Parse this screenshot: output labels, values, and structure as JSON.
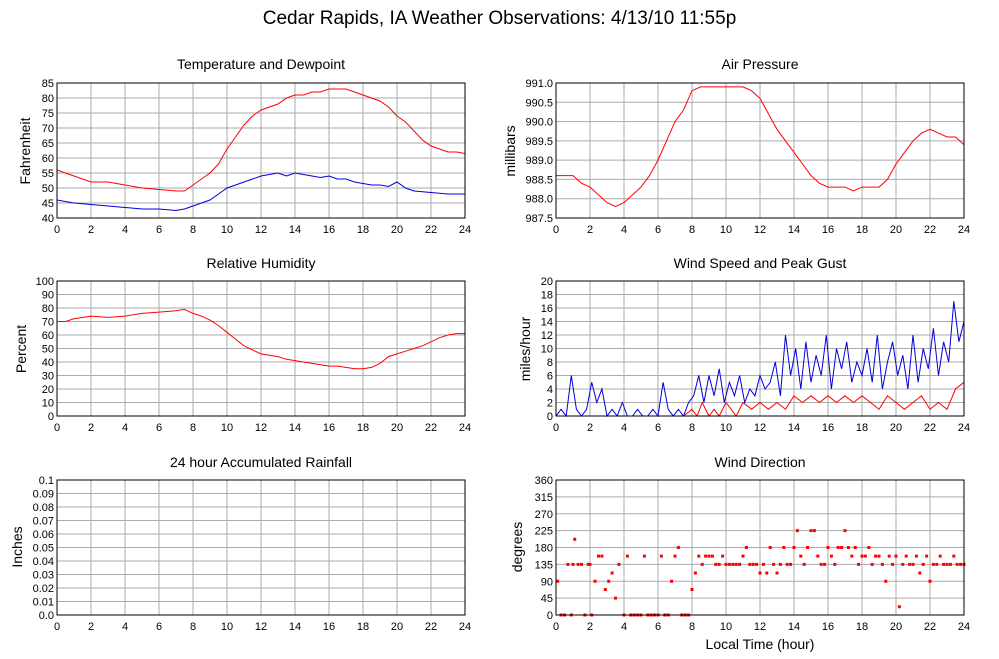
{
  "page": {
    "title": "Cedar Rapids, IA Weather Observations: 4/13/10 11:55p"
  },
  "colors": {
    "red": "#ff0000",
    "blue": "#0000dd",
    "grid": "#aaaaaa",
    "frame": "#000000"
  },
  "x_axis_title": "Local Time (hour)",
  "chart_data": [
    {
      "id": "temp",
      "type": "line",
      "title": "Temperature and Dewpoint",
      "xlabel": "",
      "ylabel": "Fahrenheit",
      "xlim": [
        0,
        24
      ],
      "ylim": [
        40,
        85
      ],
      "xticks": [
        0,
        2,
        4,
        6,
        8,
        10,
        12,
        14,
        16,
        18,
        20,
        22,
        24
      ],
      "yticks": [
        40,
        45,
        50,
        55,
        60,
        65,
        70,
        75,
        80,
        85
      ],
      "grid": true,
      "series": [
        {
          "color": "red",
          "x": [
            0,
            0.5,
            1,
            1.5,
            2,
            3,
            4,
            5,
            6,
            7,
            7.5,
            8,
            8.5,
            9,
            9.5,
            10,
            10.5,
            11,
            11.5,
            12,
            12.5,
            13,
            13.5,
            14,
            14.5,
            15,
            15.5,
            16,
            16.5,
            17,
            17.5,
            18,
            18.5,
            19,
            19.5,
            20,
            20.5,
            21,
            21.5,
            22,
            22.5,
            23,
            23.5,
            24
          ],
          "y": [
            56,
            55,
            54,
            53,
            52,
            52,
            51,
            50,
            49.5,
            49,
            49,
            51,
            53,
            55,
            58,
            63,
            67,
            71,
            74,
            76,
            77,
            78,
            80,
            81,
            81,
            82,
            82,
            83,
            83,
            83,
            82,
            81,
            80,
            79,
            77,
            74,
            72,
            69,
            66,
            64,
            63,
            62,
            62,
            61.5
          ]
        },
        {
          "color": "blue",
          "x": [
            0,
            1,
            2,
            3,
            4,
            5,
            6,
            7,
            7.5,
            8,
            8.5,
            9,
            9.5,
            10,
            10.5,
            11,
            11.5,
            12,
            12.5,
            13,
            13.5,
            14,
            14.5,
            15,
            15.5,
            16,
            16.5,
            17,
            17.5,
            18,
            18.5,
            19,
            19.5,
            20,
            20.5,
            21,
            22,
            23,
            24
          ],
          "y": [
            46,
            45,
            44.5,
            44,
            43.5,
            43,
            43,
            42.5,
            43,
            44,
            45,
            46,
            48,
            50,
            51,
            52,
            53,
            54,
            54.5,
            55,
            54,
            55,
            54.5,
            54,
            53.5,
            54,
            53,
            53,
            52,
            51.5,
            51,
            51,
            50.5,
            52,
            50,
            49,
            48.5,
            48,
            48
          ]
        }
      ]
    },
    {
      "id": "pressure",
      "type": "line",
      "title": "Air Pressure",
      "xlabel": "",
      "ylabel": "millibars",
      "xlim": [
        0,
        24
      ],
      "ylim": [
        987.5,
        991.0
      ],
      "xticks": [
        0,
        2,
        4,
        6,
        8,
        10,
        12,
        14,
        16,
        18,
        20,
        22,
        24
      ],
      "yticks": [
        987.5,
        988.0,
        988.5,
        989.0,
        989.5,
        990.0,
        990.5,
        991.0
      ],
      "grid": true,
      "series": [
        {
          "color": "red",
          "x": [
            0,
            1,
            1.5,
            2,
            2.5,
            3,
            3.5,
            4,
            4.5,
            5,
            5.5,
            6,
            6.5,
            7,
            7.5,
            8,
            8.5,
            9,
            9.5,
            10,
            10.5,
            11,
            11.5,
            12,
            12.5,
            13,
            13.5,
            14,
            14.5,
            15,
            15.5,
            16,
            16.5,
            17,
            17.5,
            18,
            18.5,
            19,
            19.5,
            20,
            20.5,
            21,
            21.5,
            22,
            22.5,
            23,
            23.5,
            24
          ],
          "y": [
            988.6,
            988.6,
            988.4,
            988.3,
            988.1,
            987.9,
            987.8,
            987.9,
            988.1,
            988.3,
            988.6,
            989.0,
            989.5,
            990.0,
            990.3,
            990.8,
            990.9,
            990.9,
            990.9,
            990.9,
            990.9,
            990.9,
            990.8,
            990.6,
            990.2,
            989.8,
            989.5,
            989.2,
            988.9,
            988.6,
            988.4,
            988.3,
            988.3,
            988.3,
            988.2,
            988.3,
            988.3,
            988.3,
            988.5,
            988.9,
            989.2,
            989.5,
            989.7,
            989.8,
            989.7,
            989.6,
            989.6,
            989.4
          ]
        }
      ]
    },
    {
      "id": "humidity",
      "type": "line",
      "title": "Relative Humidity",
      "xlabel": "",
      "ylabel": "Percent",
      "xlim": [
        0,
        24
      ],
      "ylim": [
        0,
        100
      ],
      "xticks": [
        0,
        2,
        4,
        6,
        8,
        10,
        12,
        14,
        16,
        18,
        20,
        22,
        24
      ],
      "yticks": [
        0,
        10,
        20,
        30,
        40,
        50,
        60,
        70,
        80,
        90,
        100
      ],
      "grid": true,
      "series": [
        {
          "color": "red",
          "x": [
            0,
            0.5,
            1,
            2,
            3,
            4,
            5,
            6,
            7,
            7.5,
            8,
            8.5,
            9,
            9.5,
            10,
            10.5,
            11,
            11.5,
            12,
            12.5,
            13,
            13.5,
            14,
            14.5,
            15,
            15.5,
            16,
            16.5,
            17,
            17.5,
            18,
            18.5,
            19,
            19.5,
            20,
            20.5,
            21,
            21.5,
            22,
            22.5,
            23,
            23.5,
            24
          ],
          "y": [
            70,
            70,
            72,
            74,
            73,
            74,
            76,
            77,
            78,
            79,
            76,
            74,
            71,
            67,
            62,
            57,
            52,
            49,
            46,
            45,
            44,
            42,
            41,
            40,
            39,
            38,
            37,
            37,
            36,
            35,
            35,
            36,
            39,
            44,
            46,
            48,
            50,
            52,
            55,
            58,
            60,
            61,
            61
          ]
        }
      ]
    },
    {
      "id": "wind",
      "type": "line",
      "title": "Wind Speed and Peak Gust",
      "xlabel": "",
      "ylabel": "miles/hour",
      "xlim": [
        0,
        24
      ],
      "ylim": [
        0,
        20
      ],
      "xticks": [
        0,
        2,
        4,
        6,
        8,
        10,
        12,
        14,
        16,
        18,
        20,
        22,
        24
      ],
      "yticks": [
        0,
        2,
        4,
        6,
        8,
        10,
        12,
        14,
        16,
        18,
        20
      ],
      "grid": true,
      "series": [
        {
          "color": "blue",
          "x": [
            0,
            0.3,
            0.6,
            0.9,
            1.2,
            1.5,
            1.8,
            2.1,
            2.4,
            2.7,
            3,
            3.3,
            3.6,
            3.9,
            4.2,
            4.5,
            4.8,
            5.1,
            5.4,
            5.7,
            6,
            6.3,
            6.6,
            6.9,
            7.2,
            7.5,
            7.8,
            8.1,
            8.4,
            8.7,
            9,
            9.3,
            9.6,
            9.9,
            10.2,
            10.5,
            10.8,
            11.1,
            11.4,
            11.7,
            12,
            12.3,
            12.6,
            12.9,
            13.2,
            13.5,
            13.8,
            14.1,
            14.4,
            14.7,
            15,
            15.3,
            15.6,
            15.9,
            16.2,
            16.5,
            16.8,
            17.1,
            17.4,
            17.7,
            18,
            18.3,
            18.6,
            18.9,
            19.2,
            19.5,
            19.8,
            20.1,
            20.4,
            20.7,
            21,
            21.3,
            21.6,
            21.9,
            22.2,
            22.5,
            22.8,
            23.1,
            23.4,
            23.7,
            24
          ],
          "y": [
            0,
            1,
            0,
            6,
            1,
            0,
            1,
            5,
            2,
            4,
            0,
            1,
            0,
            2,
            0,
            0,
            1,
            0,
            0,
            1,
            0,
            5,
            1,
            0,
            1,
            0,
            2,
            3,
            6,
            2,
            6,
            3,
            7,
            2,
            5,
            3,
            6,
            2,
            4,
            3,
            6,
            4,
            5,
            8,
            3,
            12,
            6,
            10,
            4,
            11,
            5,
            9,
            6,
            12,
            4,
            10,
            7,
            11,
            5,
            8,
            6,
            10,
            5,
            12,
            4,
            8,
            11,
            6,
            9,
            4,
            12,
            5,
            10,
            7,
            13,
            6,
            11,
            8,
            17,
            11,
            14
          ]
        },
        {
          "color": "red",
          "x": [
            0,
            1,
            2,
            3,
            4,
            5,
            6,
            7,
            7.5,
            8,
            8.3,
            8.6,
            9,
            9.3,
            9.6,
            10,
            10.3,
            10.6,
            11,
            11.5,
            12,
            12.5,
            13,
            13.5,
            14,
            14.5,
            15,
            15.5,
            16,
            16.5,
            17,
            17.5,
            18,
            18.5,
            19,
            19.5,
            20,
            20.5,
            21,
            21.5,
            22,
            22.5,
            23,
            23.5,
            24
          ],
          "y": [
            0,
            0,
            0,
            0,
            0,
            0,
            0,
            0,
            0,
            1,
            0,
            2,
            0,
            1,
            0,
            2,
            1,
            0,
            2,
            1,
            2,
            1,
            2,
            1,
            3,
            2,
            3,
            2,
            3,
            2,
            3,
            2,
            3,
            2,
            1,
            3,
            2,
            1,
            2,
            3,
            1,
            2,
            1,
            4,
            5
          ]
        }
      ]
    },
    {
      "id": "rain",
      "type": "line",
      "title": "24 hour Accumulated Rainfall",
      "xlabel": "",
      "ylabel": "Inches",
      "xlim": [
        0,
        24
      ],
      "ylim": [
        0,
        0.1
      ],
      "xticks": [
        0,
        2,
        4,
        6,
        8,
        10,
        12,
        14,
        16,
        18,
        20,
        22,
        24
      ],
      "yticks": [
        "0.0",
        "0.01",
        "0.02",
        "0.03",
        "0.04",
        "0.05",
        "0.06",
        "0.07",
        "0.08",
        "0.09",
        "0.1"
      ],
      "grid": true,
      "series": [
        {
          "color": "red",
          "x": [
            0,
            24
          ],
          "y": [
            0,
            0
          ]
        }
      ]
    },
    {
      "id": "direction",
      "type": "scatter",
      "title": "Wind Direction",
      "xlabel": "Local Time (hour)",
      "ylabel": "degrees",
      "xlim": [
        0,
        24
      ],
      "ylim": [
        0,
        360
      ],
      "xticks": [
        0,
        2,
        4,
        6,
        8,
        10,
        12,
        14,
        16,
        18,
        20,
        22,
        24
      ],
      "yticks": [
        0,
        45,
        90,
        135,
        180,
        225,
        270,
        315,
        360
      ],
      "grid": true,
      "series": [
        {
          "color": "red",
          "x": [
            0.1,
            0.3,
            0.5,
            0.7,
            0.9,
            1.0,
            1.1,
            1.3,
            1.5,
            1.7,
            1.9,
            2.0,
            2.1,
            2.3,
            2.5,
            2.7,
            2.9,
            3.1,
            3.3,
            3.5,
            3.7,
            4.0,
            4.2,
            4.4,
            4.6,
            4.8,
            5.0,
            5.2,
            5.4,
            5.6,
            5.8,
            6.0,
            6.2,
            6.4,
            6.6,
            6.8,
            7.0,
            7.2,
            7.4,
            7.6,
            7.8,
            8.0,
            8.2,
            8.4,
            8.6,
            8.8,
            9.0,
            9.2,
            9.4,
            9.6,
            9.8,
            10.0,
            10.2,
            10.4,
            10.6,
            10.8,
            11.0,
            11.2,
            11.4,
            11.6,
            11.8,
            12.0,
            12.2,
            12.4,
            12.6,
            12.8,
            13.0,
            13.2,
            13.4,
            13.6,
            13.8,
            14.0,
            14.2,
            14.4,
            14.6,
            14.8,
            15.0,
            15.2,
            15.4,
            15.6,
            15.8,
            16.0,
            16.2,
            16.4,
            16.6,
            16.8,
            17.0,
            17.2,
            17.4,
            17.6,
            17.8,
            18.0,
            18.2,
            18.4,
            18.6,
            18.8,
            19.0,
            19.2,
            19.4,
            19.6,
            19.8,
            20.0,
            20.2,
            20.4,
            20.6,
            20.8,
            21.0,
            21.2,
            21.4,
            21.6,
            21.8,
            22.0,
            22.2,
            22.4,
            22.6,
            22.8,
            23.0,
            23.2,
            23.4,
            23.6,
            23.8,
            24.0
          ],
          "y": [
            90,
            0,
            0,
            135,
            0,
            135,
            202,
            135,
            135,
            0,
            135,
            135,
            0,
            90,
            157,
            157,
            68,
            90,
            112,
            45,
            135,
            0,
            157,
            0,
            0,
            0,
            0,
            157,
            0,
            0,
            0,
            0,
            157,
            0,
            0,
            90,
            157,
            180,
            0,
            0,
            0,
            68,
            112,
            157,
            135,
            157,
            157,
            157,
            135,
            135,
            157,
            135,
            135,
            135,
            135,
            135,
            157,
            180,
            135,
            135,
            135,
            112,
            135,
            112,
            180,
            135,
            112,
            135,
            180,
            135,
            135,
            180,
            225,
            157,
            135,
            180,
            225,
            225,
            157,
            135,
            135,
            180,
            157,
            135,
            180,
            180,
            225,
            180,
            157,
            180,
            135,
            157,
            157,
            180,
            135,
            157,
            157,
            135,
            90,
            157,
            135,
            157,
            22,
            135,
            157,
            135,
            135,
            157,
            112,
            135,
            157,
            90,
            135,
            135,
            157,
            135,
            135,
            135,
            157,
            135,
            135,
            135
          ]
        }
      ]
    }
  ]
}
